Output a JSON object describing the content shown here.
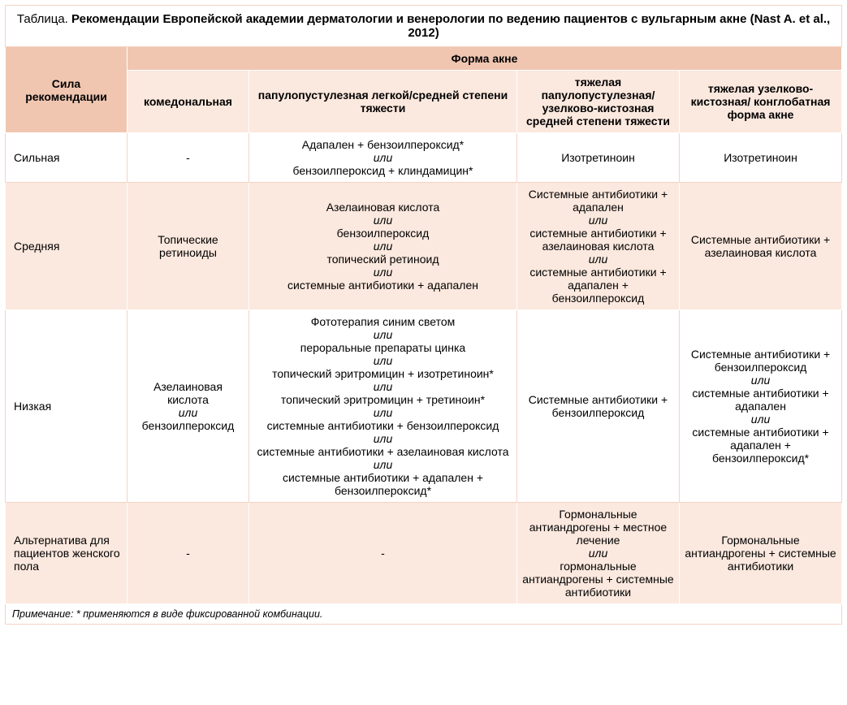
{
  "title": {
    "prefix": "Таблица. ",
    "main": "Рекомендации Европейской академии дерматологии и венерологии по ведению пациентов с вульгарным акне (Nast A. et al., 2012)"
  },
  "columns": {
    "c1": "Сила рекомендации",
    "group": "Форма акне",
    "c2": "комедональная",
    "c3": "папулопустулезная легкой/средней степени тяжести",
    "c4": "тяжелая папулопустулезная/ узелково-кистозная средней степени тяжести",
    "c5": "тяжелая узелково-кистозная/ конглобатная форма акне"
  },
  "rows": {
    "r1": {
      "label": "Сильная",
      "c2": "-",
      "c3_a": "Адапален + бензоилпероксид*",
      "c3_b": "бензоилпероксид + клиндамицин*",
      "c4": "Изотретиноин",
      "c5": "Изотретиноин"
    },
    "r2": {
      "label": "Средняя",
      "c2": "Топические ретиноиды",
      "c3_a": "Азелаиновая кислота",
      "c3_b": "бензоилпероксид",
      "c3_c": "топический ретиноид",
      "c3_d": "системные антибиотики + адапален",
      "c4_a": "Системные антибиотики  + адапален",
      "c4_b": "системные антибиотики  + азелаиновая кислота",
      "c4_c": "системные антибиотики  + адапален  + бензоилпероксид",
      "c5": "Системные антибиотики  + азелаиновая кислота"
    },
    "r3": {
      "label": "Низкая",
      "c2_a": "Азелаиновая кислота",
      "c2_b": "бензоилпероксид",
      "c3_a": "Фототерапия синим светом",
      "c3_b": "пероральные препараты цинка",
      "c3_c": "топический эритромицин + изотретиноин*",
      "c3_d": "топический эритромицин + третиноин*",
      "c3_e": "системные антибиотики + бензоилпероксид",
      "c3_f": "системные антибиотики + азелаиновая кислота",
      "c3_g": "системные антибиотики + адапален  + бензоилпероксид*",
      "c4": "Системные антибиотики  + бензоилпероксид",
      "c5_a": "Системные антибиотики  + бензоилпероксид",
      "c5_b": "системные антибиотики + адапален",
      "c5_c": "системные антибиотики + адапален  + бензоилпероксид*"
    },
    "r4": {
      "label": "Альтернатива для пациентов женского пола",
      "c2": "-",
      "c3": "-",
      "c4_a": "Гормональные антиандрогены  + местное лечение",
      "c4_b": "гормональные антиандрогены  + системные антибиотики",
      "c5": "Гормональные антиандрогены  + системные антибиотики"
    }
  },
  "sep": "или",
  "footnote": "Примечание: * применяются в виде фиксированной комбинации.",
  "style": {
    "header_dark": "#f0c6b1",
    "header_light": "#fbe8de",
    "border_soft": "#f5d4c5",
    "text": "#000000",
    "background": "#ffffff",
    "font_size_body": 14,
    "font_size_title": 15,
    "font_size_footnote": 12.5
  }
}
